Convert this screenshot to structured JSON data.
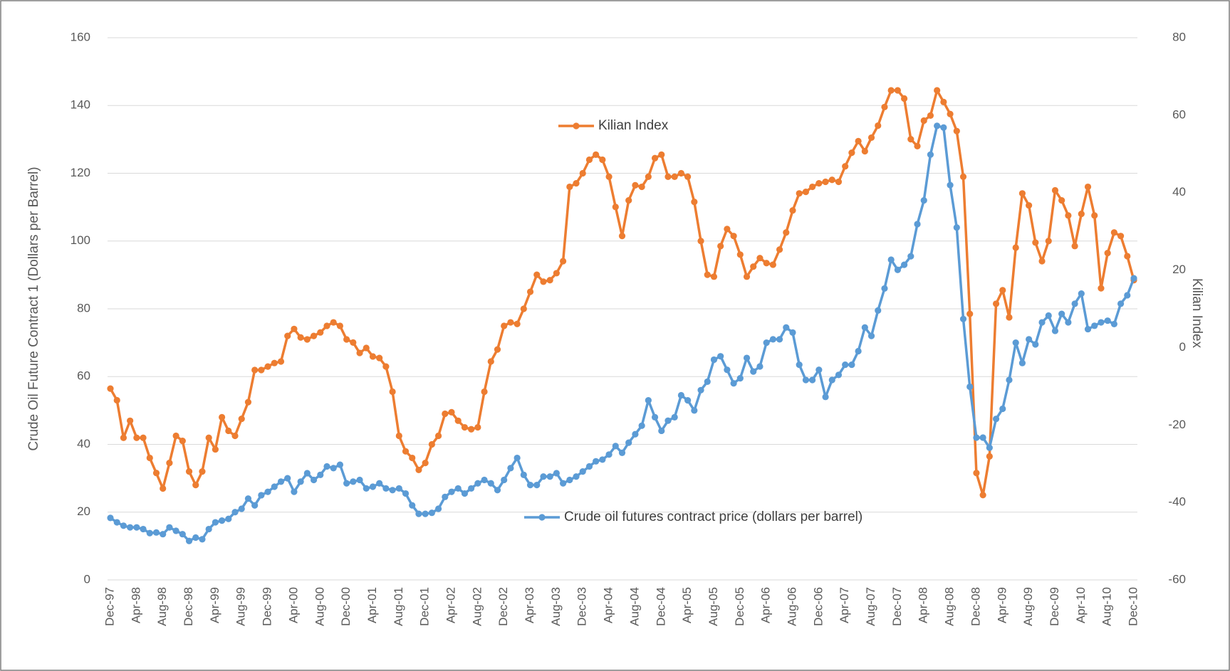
{
  "chart_data": {
    "type": "line",
    "y_label": "Crude Oil Future Contract 1 (Dollars per Barrel)",
    "y2_label": "Kilian Index",
    "categories": [
      "Dec-97",
      null,
      null,
      null,
      "Apr-98",
      null,
      null,
      null,
      "Aug-98",
      null,
      null,
      null,
      "Dec-98",
      null,
      null,
      null,
      "Apr-99",
      null,
      null,
      null,
      "Aug-99",
      null,
      null,
      null,
      "Dec-99",
      null,
      null,
      null,
      "Apr-00",
      null,
      null,
      null,
      "Aug-00",
      null,
      null,
      null,
      "Dec-00",
      null,
      null,
      null,
      "Apr-01",
      null,
      null,
      null,
      "Aug-01",
      null,
      null,
      null,
      "Dec-01",
      null,
      null,
      null,
      "Apr-02",
      null,
      null,
      null,
      "Aug-02",
      null,
      null,
      null,
      "Dec-02",
      null,
      null,
      null,
      "Apr-03",
      null,
      null,
      null,
      "Aug-03",
      null,
      null,
      null,
      "Dec-03",
      null,
      null,
      null,
      "Apr-04",
      null,
      null,
      null,
      "Aug-04",
      null,
      null,
      null,
      "Dec-04",
      null,
      null,
      null,
      "Apr-05",
      null,
      null,
      null,
      "Aug-05",
      null,
      null,
      null,
      "Dec-05",
      null,
      null,
      null,
      "Apr-06",
      null,
      null,
      null,
      "Aug-06",
      null,
      null,
      null,
      "Dec-06",
      null,
      null,
      null,
      "Apr-07",
      null,
      null,
      null,
      "Aug-07",
      null,
      null,
      null,
      "Dec-07",
      null,
      null,
      null,
      "Apr-08",
      null,
      null,
      null,
      "Aug-08",
      null,
      null,
      null,
      "Dec-08",
      null,
      null,
      null,
      "Apr-09",
      null,
      null,
      null,
      "Aug-09",
      null,
      null,
      null,
      "Dec-09",
      null,
      null,
      null,
      "Apr-10",
      null,
      null,
      null,
      "Aug-10",
      null,
      null,
      null,
      "Dec-10"
    ],
    "series": [
      {
        "name": "Kilian Index",
        "color": "#ed7d31",
        "axis": "y2",
        "values": [
          -10.6,
          -13.6,
          -23.3,
          -18.9,
          -23.3,
          -23.3,
          -28.5,
          -32.4,
          -36.4,
          -29.8,
          -22.8,
          -24.1,
          -32,
          -35.5,
          -32,
          -23.3,
          -26.3,
          -18,
          -21.5,
          -22.8,
          -18.4,
          -14.1,
          -5.8,
          -5.8,
          -4.9,
          -4,
          -3.6,
          3,
          4.8,
          2.6,
          2.1,
          3,
          3.9,
          5.6,
          6.5,
          5.6,
          2.1,
          1.3,
          -1.4,
          -0.1,
          -2.3,
          -2.7,
          -4.9,
          -11.4,
          -22.8,
          -26.8,
          -28.5,
          -31.6,
          -29.8,
          -25,
          -22.8,
          -17.1,
          -16.7,
          -18.9,
          -20.6,
          -21.1,
          -20.6,
          -11.4,
          -3.6,
          -0.5,
          5.6,
          6.5,
          6.1,
          10,
          14.4,
          18.8,
          17,
          17.4,
          19.2,
          22.3,
          41.5,
          42.4,
          45,
          48.5,
          49.8,
          48.5,
          44.1,
          36.3,
          28.8,
          38,
          41.9,
          41.5,
          44.1,
          48.9,
          49.8,
          44.1,
          44.1,
          45,
          44.1,
          37.6,
          27.5,
          18.8,
          18.3,
          26.2,
          30.6,
          28.8,
          24,
          18.3,
          20.9,
          23.1,
          21.8,
          21.4,
          25.3,
          29.7,
          35.4,
          39.8,
          40.2,
          41.5,
          42.4,
          42.8,
          43.3,
          42.8,
          46.8,
          50.3,
          53.3,
          50.7,
          54.2,
          57.3,
          62.1,
          66.4,
          66.4,
          64.3,
          53.8,
          52,
          58.6,
          59.9,
          66.4,
          63.4,
          60.3,
          55.9,
          44.1,
          8.7,
          -32.4,
          -38.1,
          -28.1,
          11.3,
          14.8,
          7.8,
          25.8,
          39.8,
          36.7,
          27.1,
          22.3,
          27.5,
          40.6,
          38,
          34.1,
          26.2,
          34.5,
          41.5,
          34.1,
          15.3,
          24.4,
          29.7,
          28.8,
          23.6,
          17.4
        ]
      },
      {
        "name": "Crude oil futures contract price (dollars per barrel)",
        "color": "#5b9bd5",
        "axis": "y",
        "values": [
          18.3,
          17,
          16,
          15.5,
          15.5,
          15,
          13.8,
          14,
          13.5,
          15.5,
          14.5,
          13.5,
          11.5,
          12.5,
          12,
          15,
          17,
          17.5,
          18,
          20,
          21,
          24,
          22,
          25,
          26,
          27.5,
          29,
          30,
          26,
          29,
          31.5,
          29.5,
          31,
          33.5,
          33,
          34,
          28.5,
          29,
          29.5,
          27,
          27.5,
          28.5,
          27,
          26.5,
          27,
          25.5,
          22,
          19.5,
          19.5,
          19.8,
          21,
          24.5,
          26,
          27,
          25.5,
          27,
          28.5,
          29.5,
          28.5,
          26.5,
          29.5,
          33,
          36,
          31,
          28,
          28,
          30.5,
          30.5,
          31.5,
          28.5,
          29.5,
          30.5,
          32,
          33.5,
          35,
          35.5,
          37,
          39.5,
          37.5,
          40.5,
          43,
          45.5,
          53,
          48,
          44,
          47,
          48,
          54.5,
          53,
          50,
          56,
          58.5,
          65,
          66,
          62,
          58,
          59.5,
          65.5,
          61.5,
          63,
          70,
          71,
          71,
          74.5,
          73,
          63.5,
          59,
          59,
          62,
          54,
          59,
          60.5,
          63.5,
          63.5,
          67.5,
          74.5,
          72,
          79.5,
          86,
          94.5,
          91.5,
          93,
          95.5,
          105,
          112,
          125.5,
          134,
          133.5,
          116.5,
          104,
          77,
          57,
          42,
          42,
          39,
          47.5,
          50.5,
          59,
          70,
          64,
          71,
          69.5,
          76,
          78,
          73.5,
          78.5,
          76,
          81.5,
          84.5,
          74,
          75,
          76,
          76.5,
          75.5,
          81.5,
          84,
          89
        ]
      }
    ],
    "ylim": [
      0,
      160
    ],
    "yticks": [
      0,
      20,
      40,
      60,
      80,
      100,
      120,
      140,
      160
    ],
    "y2lim": [
      -60,
      80
    ],
    "y2ticks": [
      -60,
      -40,
      -20,
      0,
      20,
      40,
      60,
      80
    ],
    "grid": true
  }
}
